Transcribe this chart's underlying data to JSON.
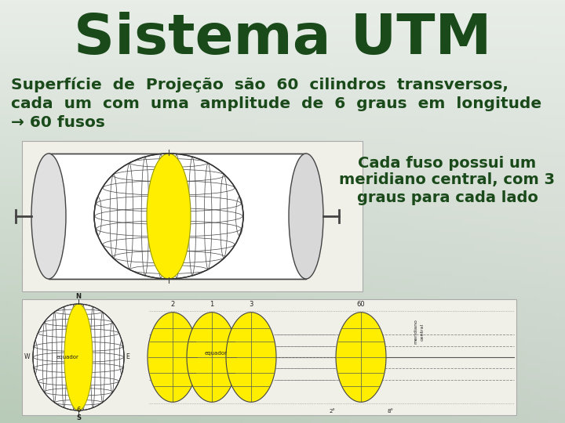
{
  "title": "Sistema UTM",
  "title_color": "#1a4a1a",
  "title_fontsize": 52,
  "body_text_line1": "Superfície  de  Projeção  são  60  cilindros  transversos,",
  "body_text_line2": "cada  um  com  uma  amplitude  de  6  graus  em  longitude",
  "body_text_line3": "→ 60 fusos",
  "body_text_color": "#1a4a1a",
  "body_fontsize": 14.5,
  "side_text_line1": "Cada fuso possui um",
  "side_text_line2": "meridiano central, com 3",
  "side_text_line3": "graus para cada lado",
  "side_text_color": "#1a4a1a",
  "side_fontsize": 14,
  "bg_color_tl": "#e8ede8",
  "bg_color_bl": "#c0cfc0",
  "bg_color_tr": "#dde6dd",
  "bg_color_br": "#b8cab8"
}
